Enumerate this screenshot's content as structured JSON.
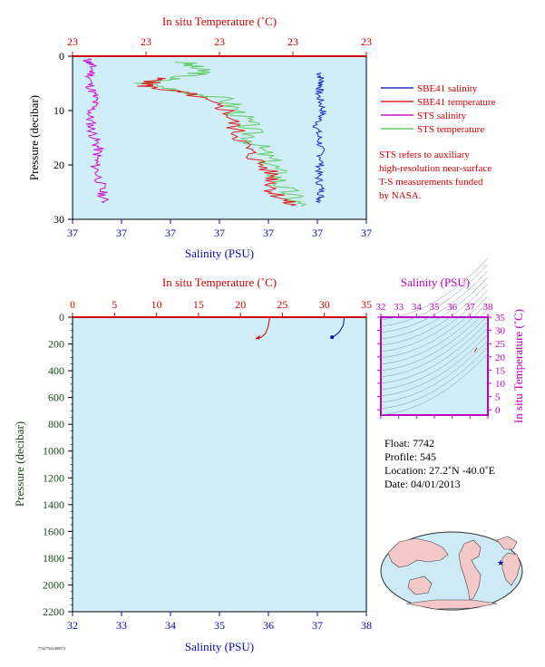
{
  "top_chart": {
    "temp_axis_title": "In situ Temperature (˚C)",
    "temp_ticks": [
      "23",
      "23",
      "23",
      "23",
      "23"
    ],
    "sal_axis_title": "Salinity (PSU)",
    "sal_ticks": [
      "37",
      "37",
      "37",
      "37",
      "37",
      "37",
      "37"
    ],
    "pressure_axis_title": "Pressure (decibar)",
    "pressure_ticks": [
      "0",
      "10",
      "20",
      "30"
    ]
  },
  "legend": {
    "items": [
      {
        "label": "SBE41 salinity",
        "color": "#2233cc"
      },
      {
        "label": "SBE41 temperature",
        "color": "#dd2222"
      },
      {
        "label": "STS salinity",
        "color": "#d010d0"
      },
      {
        "label": "STS temperature",
        "color": "#66cc66"
      }
    ],
    "note": [
      "STS refers to auxiliary",
      "high-resolution near-surface",
      "T-S measurements funded",
      "by NASA."
    ]
  },
  "bottom_chart": {
    "temp_axis_title": "In situ Temperature (˚C)",
    "temp_ticks": [
      "0",
      "5",
      "10",
      "15",
      "20",
      "25",
      "30",
      "35"
    ],
    "sal_axis_title": "Salinity (PSU)",
    "sal_ticks": [
      "32",
      "33",
      "34",
      "35",
      "36",
      "37",
      "38"
    ],
    "pressure_axis_title": "Pressure (decibar)",
    "pressure_ticks": [
      "0",
      "200",
      "400",
      "600",
      "800",
      "1000",
      "1200",
      "1400",
      "1600",
      "1800",
      "2000",
      "2200"
    ]
  },
  "ts_chart": {
    "sal_axis_title": "Salinity (PSU)",
    "sal_ticks": [
      "32",
      "33",
      "34",
      "35",
      "36",
      "37",
      "38"
    ],
    "temp_axis_title": "In situ Temperature (˚C)",
    "temp_ticks": [
      "0",
      "5",
      "10",
      "15",
      "20",
      "25",
      "30",
      "35"
    ]
  },
  "info": {
    "float": "Float:  7742",
    "profile": "Profile:  545",
    "location": "Location:  27.2˚N  -40.0˚E",
    "date": "Date:  04/01/2013"
  },
  "footer_code": "7742/7543.000574",
  "colors": {
    "plot_bg": "#d0eef8",
    "red": "#d40000",
    "blue": "#0a0ab4",
    "magenta": "#c000c0",
    "green_text": "#1a4a1a"
  },
  "chart_data": [
    {
      "type": "line",
      "title": "",
      "xlabel": "Salinity (PSU)",
      "x2label": "In situ Temperature (˚C)",
      "ylabel": "Pressure (decibar)",
      "ylim": [
        30,
        0
      ],
      "series": [
        {
          "name": "SBE41 salinity",
          "color": "#2233cc",
          "x": [
            37.356,
            37.357,
            37.355,
            37.358,
            37.354,
            37.356,
            37.357,
            37.355,
            37.357,
            37.356
          ],
          "y": [
            3.0,
            5.0,
            7.0,
            10.0,
            13.0,
            16.0,
            19.0,
            22.0,
            25.0,
            27.0
          ]
        },
        {
          "name": "SBE41 temperature",
          "color": "#dd2222",
          "x": [
            23.05,
            23.02,
            23.12,
            23.2,
            23.22,
            23.25,
            23.3,
            23.3,
            23.34
          ],
          "y": [
            4.0,
            5.5,
            7.0,
            10.0,
            14.0,
            18.0,
            22.0,
            25.0,
            27.5
          ]
        },
        {
          "name": "STS salinity",
          "color": "#d010d0",
          "x": [
            37.003,
            37.005,
            37.004,
            37.006,
            37.004,
            37.005,
            37.007,
            37.006,
            37.008,
            37.009
          ],
          "y": [
            0.5,
            2.0,
            5.0,
            8.0,
            11.0,
            14.0,
            17.0,
            20.0,
            24.0,
            27.0
          ]
        },
        {
          "name": "STS temperature",
          "color": "#66cc66",
          "x": [
            23.1,
            23.15,
            23.02,
            23.2,
            23.24,
            23.26,
            23.3,
            23.32,
            23.36
          ],
          "y": [
            1.0,
            3.0,
            5.0,
            8.0,
            12.0,
            16.0,
            20.0,
            24.0,
            27.5
          ]
        }
      ]
    },
    {
      "type": "line",
      "title": "",
      "xlabel": "Salinity (PSU)",
      "x2label": "In situ Temperature (˚C)",
      "ylabel": "Pressure (decibar)",
      "xlim": [
        32,
        38
      ],
      "x2lim": [
        0,
        35
      ],
      "ylim": [
        2200,
        0
      ],
      "series": [
        {
          "name": "Salinity",
          "color": "#0a0ab4",
          "x": [
            37.55,
            37.53,
            37.45,
            37.35,
            37.3
          ],
          "y": [
            0,
            60,
            110,
            140,
            150
          ]
        },
        {
          "name": "Temperature",
          "color": "#d40000",
          "x": [
            23.5,
            23.3,
            23.0,
            22.5,
            21.8
          ],
          "y": [
            0,
            70,
            120,
            150,
            160
          ]
        }
      ]
    },
    {
      "type": "scatter",
      "title": "",
      "xlabel": "Salinity (PSU)",
      "ylabel": "In situ Temperature (˚C)",
      "xlim": [
        32,
        38
      ],
      "ylim": [
        -2,
        35
      ],
      "series": [
        {
          "name": "T-S",
          "color": "#dd2222",
          "x": [
            37.25,
            37.3,
            37.35,
            37.4
          ],
          "y": [
            21.8,
            22.5,
            23.0,
            23.4
          ]
        }
      ]
    }
  ]
}
